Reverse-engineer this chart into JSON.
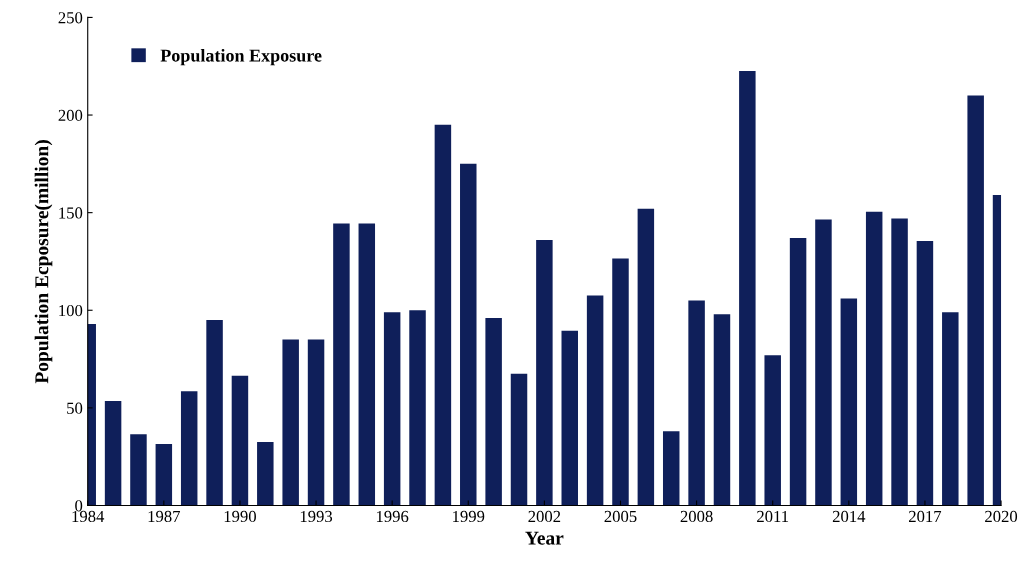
{
  "chart_data": {
    "type": "bar",
    "xlabel": "Year",
    "ylabel": "Population Ecposure(million)",
    "x": [
      1984,
      1985,
      1986,
      1987,
      1988,
      1989,
      1990,
      1991,
      1992,
      1993,
      1994,
      1995,
      1996,
      1997,
      1998,
      1999,
      2000,
      2001,
      2002,
      2003,
      2004,
      2005,
      2006,
      2007,
      2008,
      2009,
      2010,
      2011,
      2012,
      2013,
      2014,
      2015,
      2016,
      2017,
      2018,
      2019,
      2020
    ],
    "series": [
      {
        "name": "Population Exposure",
        "color": "#0f1f5a",
        "values": [
          93,
          53.5,
          36.5,
          31.5,
          58.5,
          95,
          66.5,
          32.5,
          85,
          85,
          144.5,
          144.5,
          99,
          100,
          195,
          175,
          96,
          67.5,
          136,
          89.5,
          107.5,
          126.5,
          152,
          38,
          105,
          98,
          222.5,
          77,
          137,
          146.5,
          106,
          150.5,
          147,
          135.5,
          99,
          210,
          159
        ]
      }
    ],
    "xlim": [
      1984,
      2020
    ],
    "xticks": [
      1984,
      1987,
      1990,
      1993,
      1996,
      1999,
      2002,
      2005,
      2008,
      2011,
      2014,
      2017,
      2020
    ],
    "ylim": [
      0,
      250
    ],
    "yticks": [
      0,
      50,
      100,
      150,
      200,
      250
    ],
    "grid": false,
    "legend": "top left"
  }
}
